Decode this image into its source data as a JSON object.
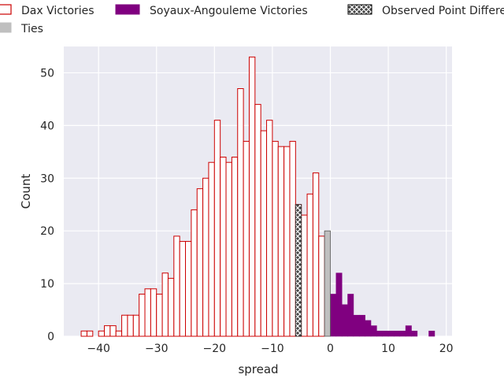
{
  "chart_data": {
    "type": "bar",
    "xlabel": "spread",
    "ylabel": "Count",
    "xlim": [
      -46,
      21
    ],
    "ylim": [
      0,
      55
    ],
    "xticks": [
      -40,
      -30,
      -20,
      -10,
      0,
      10,
      20
    ],
    "yticks": [
      0,
      10,
      20,
      30,
      40,
      50
    ],
    "xtick_labels": [
      "−40",
      "−30",
      "−20",
      "−10",
      "0",
      "10",
      "20"
    ],
    "ytick_labels": [
      "0",
      "10",
      "20",
      "30",
      "40",
      "50"
    ],
    "grid": true,
    "bin_width": 1,
    "legend": {
      "placement": "top",
      "entries": [
        {
          "label": "Dax Victories",
          "style": "outline",
          "color": "#cc0000"
        },
        {
          "label": "Soyaux-Angouleme Victories",
          "style": "filled",
          "color": "#800080"
        },
        {
          "label": "Observed Point Difference",
          "style": "hatched",
          "color": "#000000"
        },
        {
          "label": "Ties",
          "style": "filled",
          "color": "#bfbfbf"
        }
      ]
    },
    "series": [
      {
        "name": "Dax Victories",
        "color": "#cc0000",
        "bins": [
          {
            "x": -43,
            "count": 1
          },
          {
            "x": -42,
            "count": 1
          },
          {
            "x": -40,
            "count": 1
          },
          {
            "x": -39,
            "count": 2
          },
          {
            "x": -38,
            "count": 2
          },
          {
            "x": -37,
            "count": 1
          },
          {
            "x": -36,
            "count": 4
          },
          {
            "x": -35,
            "count": 4
          },
          {
            "x": -34,
            "count": 4
          },
          {
            "x": -33,
            "count": 8
          },
          {
            "x": -32,
            "count": 9
          },
          {
            "x": -31,
            "count": 9
          },
          {
            "x": -30,
            "count": 8
          },
          {
            "x": -29,
            "count": 12
          },
          {
            "x": -28,
            "count": 11
          },
          {
            "x": -27,
            "count": 19
          },
          {
            "x": -26,
            "count": 18
          },
          {
            "x": -25,
            "count": 18
          },
          {
            "x": -24,
            "count": 24
          },
          {
            "x": -23,
            "count": 28
          },
          {
            "x": -22,
            "count": 30
          },
          {
            "x": -21,
            "count": 33
          },
          {
            "x": -20,
            "count": 41
          },
          {
            "x": -19,
            "count": 34
          },
          {
            "x": -18,
            "count": 33
          },
          {
            "x": -17,
            "count": 34
          },
          {
            "x": -16,
            "count": 47
          },
          {
            "x": -15,
            "count": 37
          },
          {
            "x": -14,
            "count": 53
          },
          {
            "x": -13,
            "count": 44
          },
          {
            "x": -12,
            "count": 39
          },
          {
            "x": -11,
            "count": 41
          },
          {
            "x": -10,
            "count": 37
          },
          {
            "x": -9,
            "count": 36
          },
          {
            "x": -8,
            "count": 36
          },
          {
            "x": -7,
            "count": 37
          },
          {
            "x": -6,
            "count": 25
          },
          {
            "x": -5,
            "count": 23
          },
          {
            "x": -4,
            "count": 27
          },
          {
            "x": -3,
            "count": 31
          },
          {
            "x": -2,
            "count": 19
          }
        ]
      },
      {
        "name": "Soyaux-Angouleme Victories",
        "color": "#800080",
        "bins": [
          {
            "x": 0,
            "count": 8
          },
          {
            "x": 1,
            "count": 12
          },
          {
            "x": 2,
            "count": 6
          },
          {
            "x": 3,
            "count": 8
          },
          {
            "x": 4,
            "count": 4
          },
          {
            "x": 5,
            "count": 4
          },
          {
            "x": 6,
            "count": 3
          },
          {
            "x": 7,
            "count": 2
          },
          {
            "x": 8,
            "count": 1
          },
          {
            "x": 9,
            "count": 1
          },
          {
            "x": 10,
            "count": 1
          },
          {
            "x": 11,
            "count": 1
          },
          {
            "x": 12,
            "count": 1
          },
          {
            "x": 13,
            "count": 2
          },
          {
            "x": 14,
            "count": 1
          },
          {
            "x": 17,
            "count": 1
          }
        ]
      },
      {
        "name": "Ties",
        "color": "#bfbfbf",
        "bins": [
          {
            "x": -1,
            "count": 20
          }
        ]
      },
      {
        "name": "Observed Point Difference",
        "color": "#333333",
        "bins": [
          {
            "x": -6,
            "count": 25
          }
        ]
      }
    ]
  }
}
